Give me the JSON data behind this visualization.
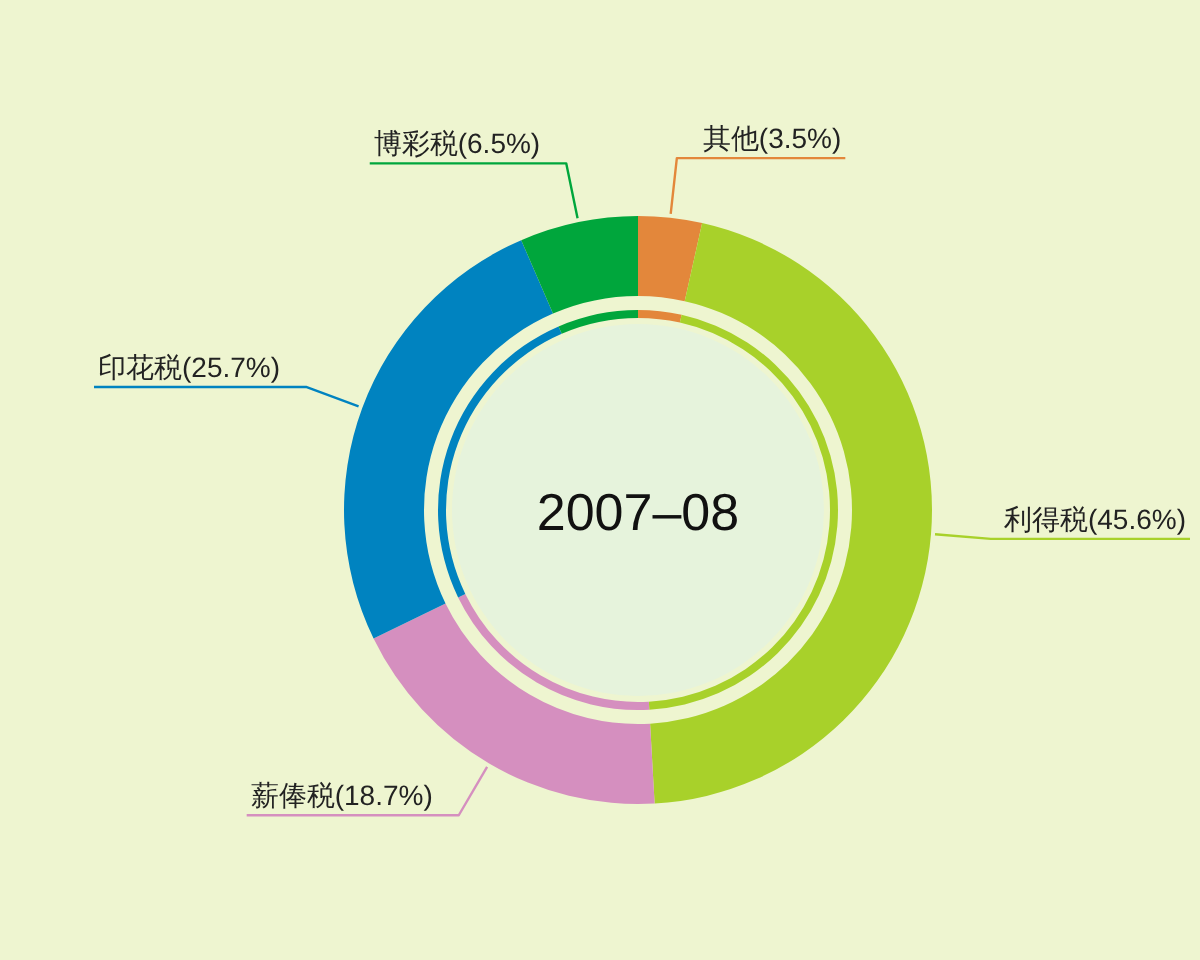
{
  "chart_data": {
    "type": "donut",
    "title": "2007–08",
    "categories": [
      "其他",
      "利得税",
      "薪俸税",
      "印花税",
      "博彩税"
    ],
    "colors": [
      "#e3873b",
      "#a8d12a",
      "#d58fbf",
      "#0083c0",
      "#00a63c"
    ],
    "series": [
      {
        "values": [
          3.5,
          45.6,
          18.7,
          25.7,
          6.5
        ]
      },
      {
        "values": [
          3.5,
          45.6,
          18.7,
          25.7,
          6.5
        ]
      }
    ],
    "value_labels": [
      "(3.5%)",
      "(45.6%)",
      "(18.7%)",
      "(25.7%)",
      "(6.5%)"
    ]
  }
}
